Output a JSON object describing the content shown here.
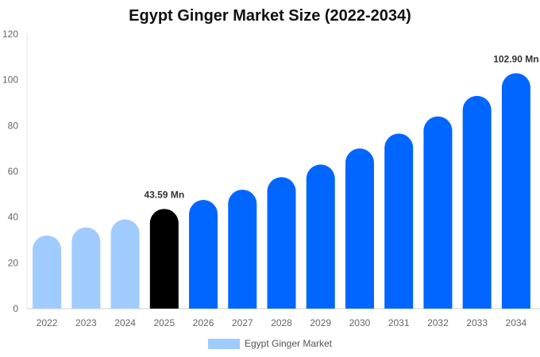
{
  "chart_data": {
    "type": "bar",
    "title": "Egypt Ginger Market Size (2022-2034)",
    "categories": [
      "2022",
      "2023",
      "2024",
      "2025",
      "2026",
      "2027",
      "2028",
      "2029",
      "2030",
      "2031",
      "2032",
      "2033",
      "2034"
    ],
    "series": [
      {
        "name": "Egypt Ginger Market",
        "values": [
          32.0,
          35.5,
          39.0,
          43.59,
          47.5,
          52.0,
          57.5,
          63.0,
          70.0,
          76.5,
          84.0,
          93.0,
          102.9
        ]
      }
    ],
    "data_labels": [
      {
        "category": "2025",
        "text": "43.59 Mn"
      },
      {
        "category": "2034",
        "text": "102.90 Mn"
      }
    ],
    "ylim": [
      0,
      120
    ],
    "yticks": [
      0,
      20,
      40,
      60,
      80,
      100,
      120
    ],
    "xlabel": "",
    "ylabel": "",
    "grid": false,
    "legend_placement": "bottom-center",
    "bar_colors": {
      "historical": "#a0cbff",
      "current": "#000000",
      "forecast": "#0066ff"
    },
    "color_groups": [
      "historical",
      "historical",
      "historical",
      "current",
      "forecast",
      "forecast",
      "forecast",
      "forecast",
      "forecast",
      "forecast",
      "forecast",
      "forecast",
      "forecast"
    ],
    "legend_color": "#a0cbff"
  }
}
